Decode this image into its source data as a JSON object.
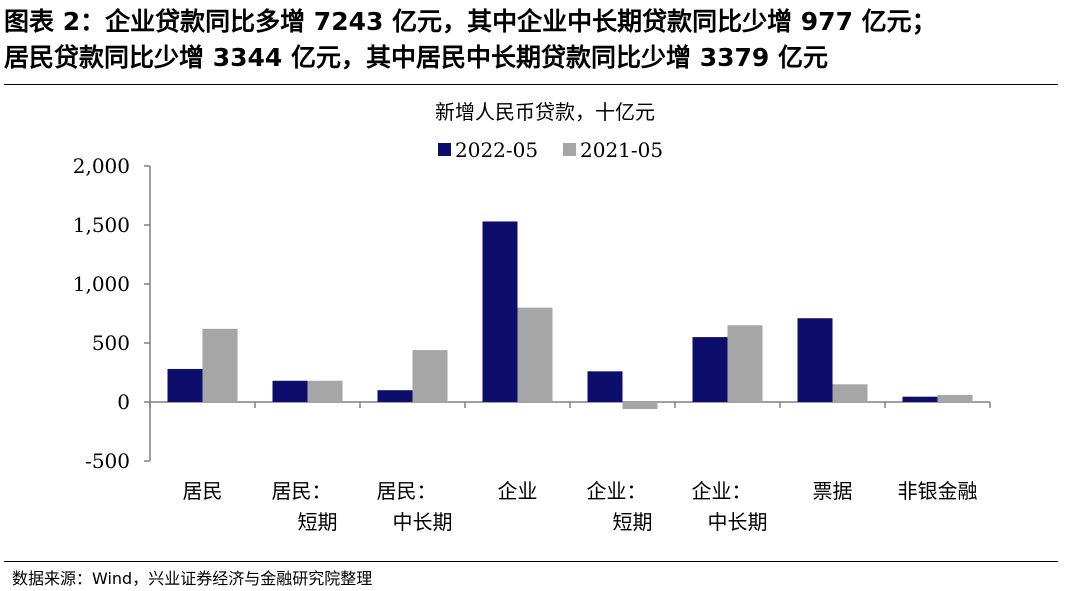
{
  "figure": {
    "title_line1": "图表 2：企业贷款同比多增 7243 亿元，其中企业中长期贷款同比少增 977 亿元；",
    "title_line2": "居民贷款同比少增 3344 亿元，其中居民中长期贷款同比少增 3379 亿元",
    "source": "数据来源：Wind，兴业证券经济与金融研究院整理"
  },
  "chart_data": {
    "type": "bar",
    "title": "新增人民币贷款，十亿元",
    "xlabel": "",
    "ylabel": "",
    "categories": [
      [
        "居民"
      ],
      [
        "居民：",
        "短期"
      ],
      [
        "居民：",
        "中长期"
      ],
      [
        "企业"
      ],
      [
        "企业：",
        "短期"
      ],
      [
        "企业：",
        "中长期"
      ],
      [
        "票据"
      ],
      [
        "非银金融"
      ]
    ],
    "series": [
      {
        "name": "2022-05",
        "color": "#0d0d6b",
        "values": [
          280,
          180,
          100,
          1530,
          260,
          550,
          710,
          45
        ]
      },
      {
        "name": "2021-05",
        "color": "#a6a6a6",
        "values": [
          620,
          180,
          440,
          800,
          -60,
          650,
          150,
          60
        ]
      }
    ],
    "ylim": [
      -500,
      2000
    ],
    "yticks": [
      -500,
      0,
      500,
      1000,
      1500,
      2000
    ],
    "ytick_labels": [
      "-500",
      "0",
      "500",
      "1,000",
      "1,500",
      "2,000"
    ],
    "legend_position": "top-center",
    "grid": false
  }
}
